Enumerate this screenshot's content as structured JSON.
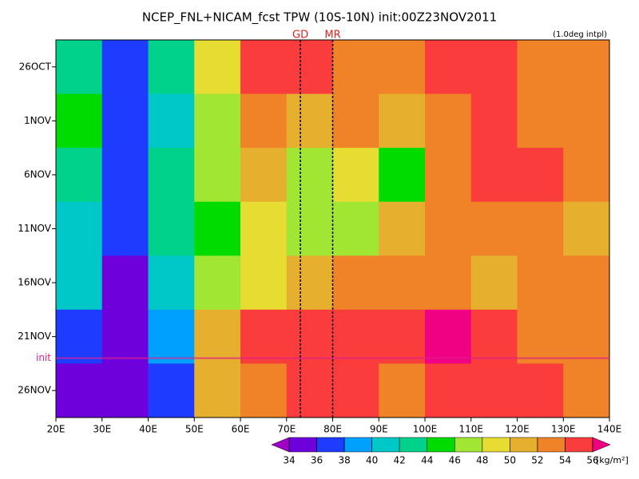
{
  "chart_data": {
    "type": "heatmap",
    "title": "NCEP_FNL+NICAM_fcst TPW (10S-10N) init:00Z23NOV2011",
    "note": "(1.0deg intpl)",
    "x": [
      25,
      35,
      45,
      55,
      65,
      75,
      85,
      95,
      105,
      115,
      125,
      135
    ],
    "rows": [
      "26OCT",
      "1NOV",
      "6NOV",
      "11NOV",
      "16NOV",
      "21NOV",
      "26NOV"
    ],
    "z": [
      [
        42,
        36,
        42,
        48,
        54,
        55,
        53,
        52,
        54,
        55,
        53,
        53
      ],
      [
        44,
        36,
        40,
        46,
        52,
        51,
        52,
        51,
        53,
        55,
        53,
        53
      ],
      [
        42,
        37,
        42,
        46,
        50,
        47,
        48,
        45,
        52,
        55,
        54,
        53
      ],
      [
        40,
        36,
        42,
        45,
        48,
        46,
        46,
        50,
        52,
        53,
        52,
        51
      ],
      [
        40,
        35,
        40,
        46,
        48,
        51,
        52,
        53,
        52,
        51,
        53,
        52
      ],
      [
        36,
        34,
        38,
        50,
        55,
        54,
        54,
        55,
        56,
        55,
        53,
        53
      ],
      [
        34,
        34,
        36,
        50,
        53,
        54,
        54,
        53,
        55,
        55,
        54,
        52
      ]
    ],
    "xlim": [
      20,
      140
    ],
    "xticks": [
      {
        "value": 20,
        "label": "20E"
      },
      {
        "value": 30,
        "label": "30E"
      },
      {
        "value": 40,
        "label": "40E"
      },
      {
        "value": 50,
        "label": "50E"
      },
      {
        "value": 60,
        "label": "60E"
      },
      {
        "value": 70,
        "label": "70E"
      },
      {
        "value": 80,
        "label": "80E"
      },
      {
        "value": 90,
        "label": "90E"
      },
      {
        "value": 100,
        "label": "100E"
      },
      {
        "value": 110,
        "label": "110E"
      },
      {
        "value": 120,
        "label": "120E"
      },
      {
        "value": 130,
        "label": "130E"
      },
      {
        "value": 140,
        "label": "140E"
      }
    ],
    "markers": [
      {
        "label": "GD",
        "x": 73
      },
      {
        "label": "MR",
        "x": 80
      }
    ],
    "init_label": "init",
    "levels": [
      34,
      36,
      38,
      40,
      42,
      44,
      46,
      48,
      50,
      52,
      54,
      56
    ],
    "colors": [
      "#a000c8",
      "#6e00dc",
      "#1e3cff",
      "#00a0ff",
      "#00c8c8",
      "#00d28c",
      "#00dc00",
      "#a0e632",
      "#e6dc32",
      "#e6af2d",
      "#f08228",
      "#fa3c3c",
      "#f00082"
    ],
    "unit": "[kg/m²]"
  }
}
